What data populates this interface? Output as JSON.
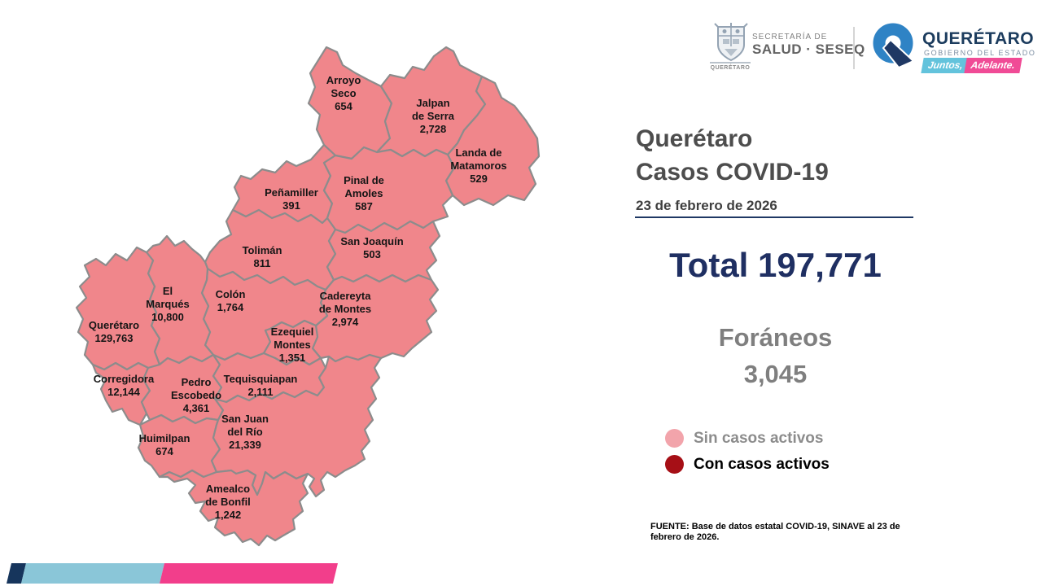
{
  "header": {
    "secretaria_line1": "SECRETARÍA DE",
    "secretaria_line2": "SALUD · SESEQ",
    "crest_caption": "QUERÉTARO",
    "gobierno_title": "QUERÉTARO",
    "gobierno_subtitle": "GOBIERNO DEL ESTADO",
    "slogan_left": "Juntos,",
    "slogan_right": "Adelante."
  },
  "panel": {
    "title_line1": "Querétaro",
    "title_line2": "Casos COVID-19",
    "date": "23 de febrero de 2026",
    "total_label": "Total",
    "total_value": "197,771",
    "foraneos_label": "Foráneos",
    "foraneos_value": "3,045",
    "legend": [
      {
        "label": "Sin casos activos",
        "color": "#f2a4ab",
        "text_color": "#8c8c8c"
      },
      {
        "label": "Con casos activos",
        "color": "#a60f16",
        "text_color": "#000000"
      }
    ],
    "source": "FUENTE: Base de datos estatal  COVID-19,  SINAVE  al 23 de febrero de 2026."
  },
  "map": {
    "fill_color": "#f0868b",
    "border_color": "#8c8c8c",
    "municipalities": [
      {
        "key": "arroyo_seco",
        "name": "Arroyo Seco",
        "cases": "654",
        "name_lines": [
          "Arroyo",
          "Seco"
        ]
      },
      {
        "key": "jalpan_de_serra",
        "name": "Jalpan de Serra",
        "cases": "2,728",
        "name_lines": [
          "Jalpan",
          "de Serra"
        ]
      },
      {
        "key": "landa_de_matamoros",
        "name": "Landa de Matamoros",
        "cases": "529",
        "name_lines": [
          "Landa de",
          "Matamoros"
        ]
      },
      {
        "key": "penamiller",
        "name": "Peñamiller",
        "cases": "391",
        "name_lines": [
          "Peñamiller"
        ]
      },
      {
        "key": "pinal_de_amoles",
        "name": "Pinal de Amoles",
        "cases": "587",
        "name_lines": [
          "Pinal de",
          "Amoles"
        ]
      },
      {
        "key": "toliman",
        "name": "Tolimán",
        "cases": "811",
        "name_lines": [
          "Tolimán"
        ]
      },
      {
        "key": "san_joaquin",
        "name": "San Joaquín",
        "cases": "503",
        "name_lines": [
          "San Joaquín"
        ]
      },
      {
        "key": "cadereyta_de_montes",
        "name": "Cadereyta de Montes",
        "cases": "2,974",
        "name_lines": [
          "Cadereyta",
          "de Montes"
        ]
      },
      {
        "key": "colon",
        "name": "Colón",
        "cases": "1,764",
        "name_lines": [
          "Colón"
        ]
      },
      {
        "key": "el_marques",
        "name": "El Marqués",
        "cases": "10,800",
        "name_lines": [
          "El",
          "Marqués"
        ]
      },
      {
        "key": "queretaro",
        "name": "Querétaro",
        "cases": "129,763",
        "name_lines": [
          "Querétaro"
        ]
      },
      {
        "key": "ezequiel_montes",
        "name": "Ezequiel Montes",
        "cases": "1,351",
        "name_lines": [
          "Ezequiel",
          "Montes"
        ]
      },
      {
        "key": "corregidora",
        "name": "Corregidora",
        "cases": "12,144",
        "name_lines": [
          "Corregidora"
        ]
      },
      {
        "key": "pedro_escobedo",
        "name": "Pedro Escobedo",
        "cases": "4,361",
        "name_lines": [
          "Pedro",
          "Escobedo"
        ]
      },
      {
        "key": "tequisquiapan",
        "name": "Tequisquiapan",
        "cases": "2,111",
        "name_lines": [
          "Tequisquiapan"
        ]
      },
      {
        "key": "huimilpan",
        "name": "Huimilpan",
        "cases": "674",
        "name_lines": [
          "Huimilpan"
        ]
      },
      {
        "key": "san_juan_del_rio",
        "name": "San Juan del Río",
        "cases": "21,339",
        "name_lines": [
          "San Juan",
          "del Río"
        ]
      },
      {
        "key": "amealco_de_bonfil",
        "name": "Amealco de Bonfil",
        "cases": "1,242",
        "name_lines": [
          "Amealco",
          "de Bonfil"
        ]
      }
    ]
  },
  "footer_bar": {
    "colors": [
      "#16355c",
      "#8ac6d8",
      "#f23e8b"
    ]
  }
}
